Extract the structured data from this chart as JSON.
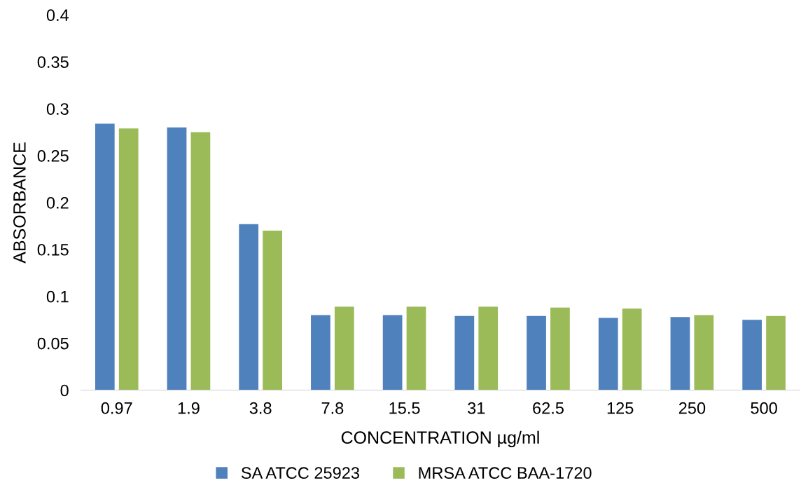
{
  "chart_data": {
    "type": "bar",
    "xlabel": "CONCENTRATION µg/ml",
    "ylabel": "ABSORBANCE",
    "categories": [
      "0.97",
      "1.9",
      "3.8",
      "7.8",
      "15.5",
      "31",
      "62.5",
      "125",
      "250",
      "500"
    ],
    "series": [
      {
        "name": "SA ATCC 25923",
        "color": "#4f81bd",
        "values": [
          0.284,
          0.28,
          0.177,
          0.08,
          0.08,
          0.079,
          0.079,
          0.077,
          0.078,
          0.075
        ]
      },
      {
        "name": "MRSA ATCC BAA-1720",
        "color": "#9bbb59",
        "values": [
          0.279,
          0.275,
          0.17,
          0.089,
          0.089,
          0.089,
          0.088,
          0.087,
          0.08,
          0.079
        ]
      }
    ],
    "ylim": [
      0,
      0.4
    ],
    "yticks": [
      0,
      0.05,
      0.1,
      0.15,
      0.2,
      0.25,
      0.3,
      0.35,
      0.4
    ],
    "grid": false,
    "legend": "bottom"
  }
}
